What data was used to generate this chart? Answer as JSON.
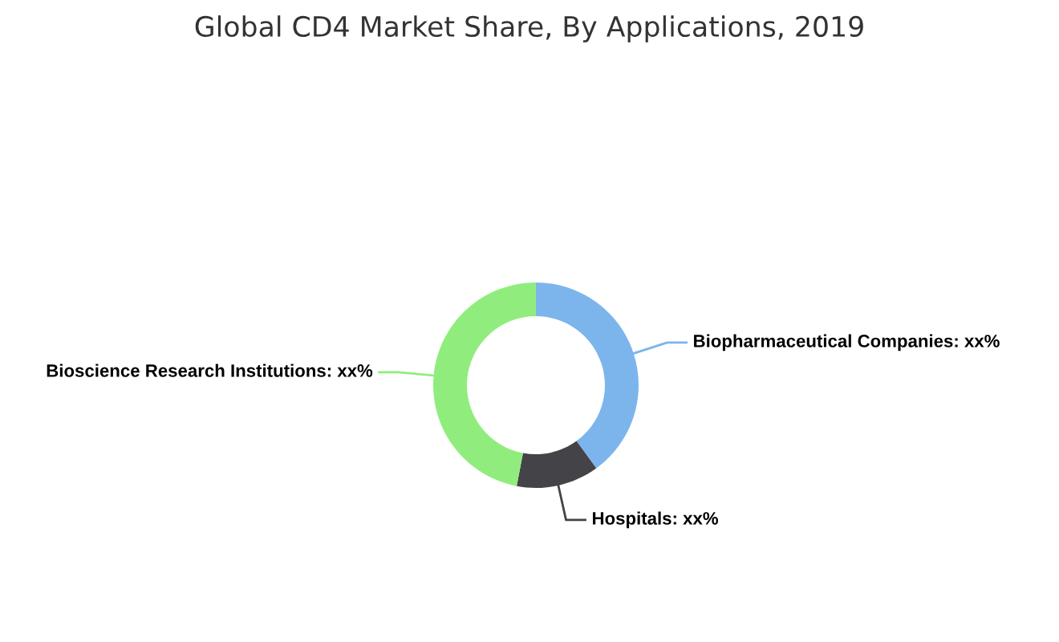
{
  "chart_data": {
    "type": "donut",
    "title": "Global CD4 Market Share, By Applications, 2019",
    "categories": [
      "Biopharmaceutical Companies",
      "Hospitals",
      "Bioscience Research Institutions"
    ],
    "values": [
      40,
      13,
      47
    ],
    "colors": [
      "#7cb5ec",
      "#434348",
      "#90ed7d"
    ],
    "value_labels": [
      "xx%",
      "xx%",
      "xx%"
    ]
  }
}
